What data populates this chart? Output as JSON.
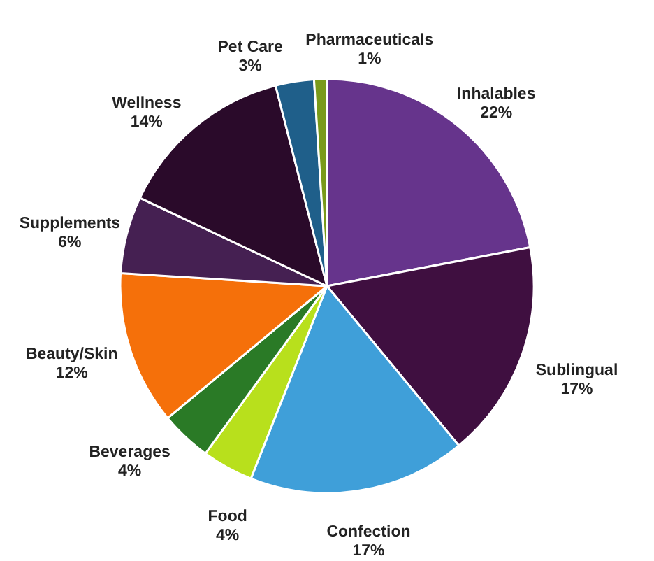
{
  "chart_data": {
    "type": "pie",
    "categories": [
      "Inhalables",
      "Sublingual",
      "Confection",
      "Food",
      "Beverages",
      "Beauty/Skin",
      "Supplements",
      "Wellness",
      "Pet Care",
      "Pharmaceuticals"
    ],
    "values": [
      22,
      17,
      17,
      4,
      4,
      12,
      6,
      14,
      3,
      1
    ],
    "value_labels": [
      "22%",
      "17%",
      "17%",
      "4%",
      "4%",
      "12%",
      "6%",
      "14%",
      "3%",
      "1%"
    ],
    "colors": [
      "#66348c",
      "#3f0f40",
      "#3f9fd9",
      "#b8e01c",
      "#2a7a26",
      "#f5700a",
      "#452052",
      "#2a0a2a",
      "#1f5f8a",
      "#7a9a1a"
    ]
  }
}
